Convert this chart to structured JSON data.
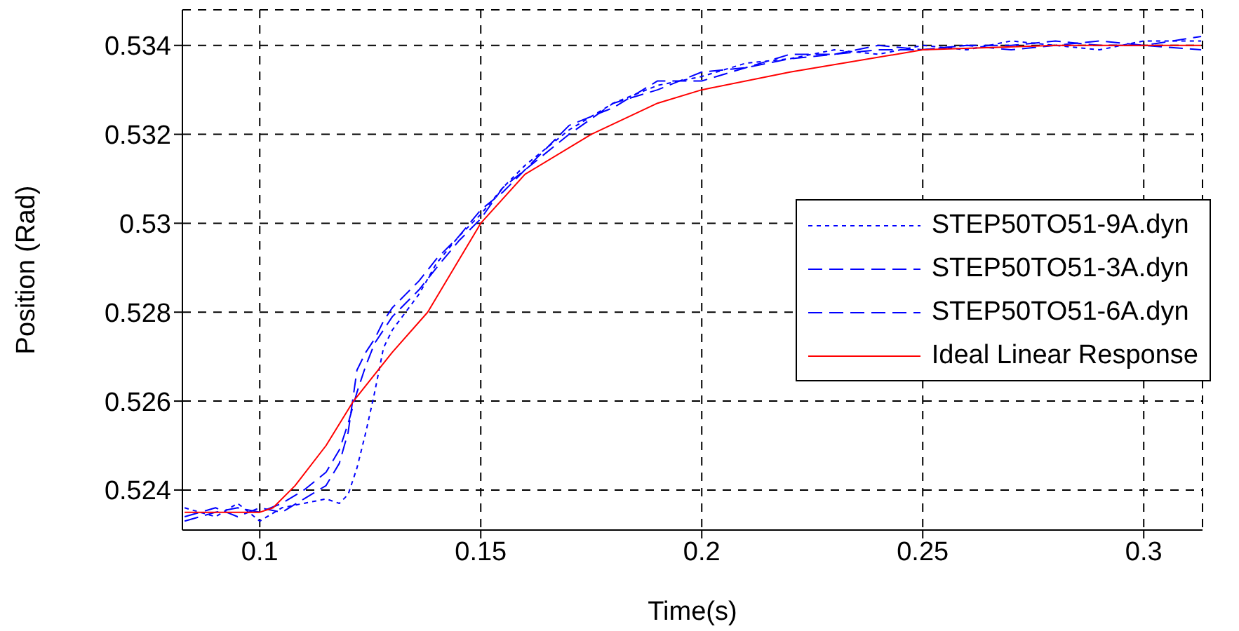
{
  "chart_data": {
    "type": "line",
    "xlabel": "Time(s)",
    "ylabel": "Position (Rad)",
    "xlim": [
      0.0825,
      0.3133
    ],
    "ylim": [
      0.5231,
      0.5348
    ],
    "xticks": [
      0.1,
      0.15,
      0.2,
      0.25,
      0.3
    ],
    "yticks": [
      0.524,
      0.526,
      0.528,
      0.53,
      0.532,
      0.534
    ],
    "grid": true,
    "legend": "right",
    "marker": "none",
    "x": [
      0.083,
      0.09,
      0.095,
      0.1,
      0.105,
      0.11,
      0.115,
      0.118,
      0.12,
      0.122,
      0.124,
      0.126,
      0.128,
      0.13,
      0.133,
      0.136,
      0.14,
      0.145,
      0.15,
      0.155,
      0.16,
      0.17,
      0.18,
      0.19,
      0.2,
      0.21,
      0.22,
      0.23,
      0.24,
      0.25,
      0.26,
      0.27,
      0.28,
      0.29,
      0.3,
      0.313
    ],
    "series": [
      {
        "name": "STEP50TO51-9A.dyn",
        "color": "#0000ff",
        "line_style": "dotted",
        "values": [
          0.5236,
          0.5234,
          0.5237,
          0.5233,
          0.5236,
          0.5237,
          0.5238,
          0.5237,
          0.5239,
          0.5245,
          0.5253,
          0.5262,
          0.5272,
          0.5276,
          0.528,
          0.5284,
          0.5291,
          0.5297,
          0.5302,
          0.5308,
          0.5313,
          0.5321,
          0.5327,
          0.5331,
          0.5333,
          0.5336,
          0.5337,
          0.5339,
          0.5338,
          0.534,
          0.5339,
          0.5341,
          0.534,
          0.5339,
          0.5341,
          0.5341
        ]
      },
      {
        "name": "STEP50TO51-3A.dyn",
        "color": "#0000ff",
        "line_style": "dashed",
        "values": [
          0.5234,
          0.5236,
          0.5234,
          0.5236,
          0.5235,
          0.5238,
          0.5241,
          0.5246,
          0.5253,
          0.5267,
          0.5271,
          0.5274,
          0.5278,
          0.5281,
          0.5284,
          0.5287,
          0.5292,
          0.5297,
          0.5303,
          0.5307,
          0.5312,
          0.5322,
          0.5326,
          0.5332,
          0.5332,
          0.5335,
          0.5338,
          0.5338,
          0.5339,
          0.5339,
          0.534,
          0.534,
          0.5341,
          0.534,
          0.534,
          0.5342
        ]
      },
      {
        "name": "STEP50TO51-6A.dyn",
        "color": "#0000ff",
        "line_style": "dashed",
        "values": [
          0.5233,
          0.5235,
          0.5236,
          0.5235,
          0.5237,
          0.524,
          0.5244,
          0.5249,
          0.5255,
          0.5262,
          0.5268,
          0.5273,
          0.5276,
          0.5279,
          0.5282,
          0.5285,
          0.529,
          0.5296,
          0.5301,
          0.5308,
          0.5312,
          0.532,
          0.5327,
          0.533,
          0.5334,
          0.5335,
          0.5337,
          0.5338,
          0.534,
          0.5339,
          0.534,
          0.5339,
          0.534,
          0.5341,
          0.534,
          0.5339
        ]
      },
      {
        "name": "Ideal Linear Response",
        "color": "#ff0000",
        "line_style": "solid",
        "x": [
          0.083,
          0.1,
          0.103,
          0.108,
          0.115,
          0.1212,
          0.13,
          0.138,
          0.15,
          0.16,
          0.175,
          0.19,
          0.2,
          0.22,
          0.25,
          0.28,
          0.313
        ],
        "values": [
          0.5235,
          0.5235,
          0.5236,
          0.5241,
          0.525,
          0.526,
          0.5271,
          0.528,
          0.53,
          0.5311,
          0.532,
          0.5327,
          0.533,
          0.5334,
          0.5339,
          0.534,
          0.534
        ]
      }
    ]
  }
}
